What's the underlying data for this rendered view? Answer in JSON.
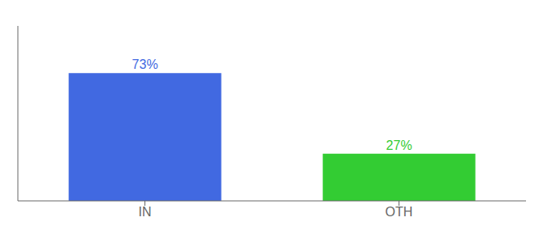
{
  "chart_data": {
    "type": "bar",
    "categories": [
      "IN",
      "OTH"
    ],
    "values": [
      73,
      27
    ],
    "value_labels": [
      "73%",
      "27%"
    ],
    "colors": [
      "#4169E1",
      "#33CC33"
    ],
    "ylim": [
      0,
      100
    ],
    "data_labels": true,
    "tick_labels": "x",
    "grid": false
  }
}
